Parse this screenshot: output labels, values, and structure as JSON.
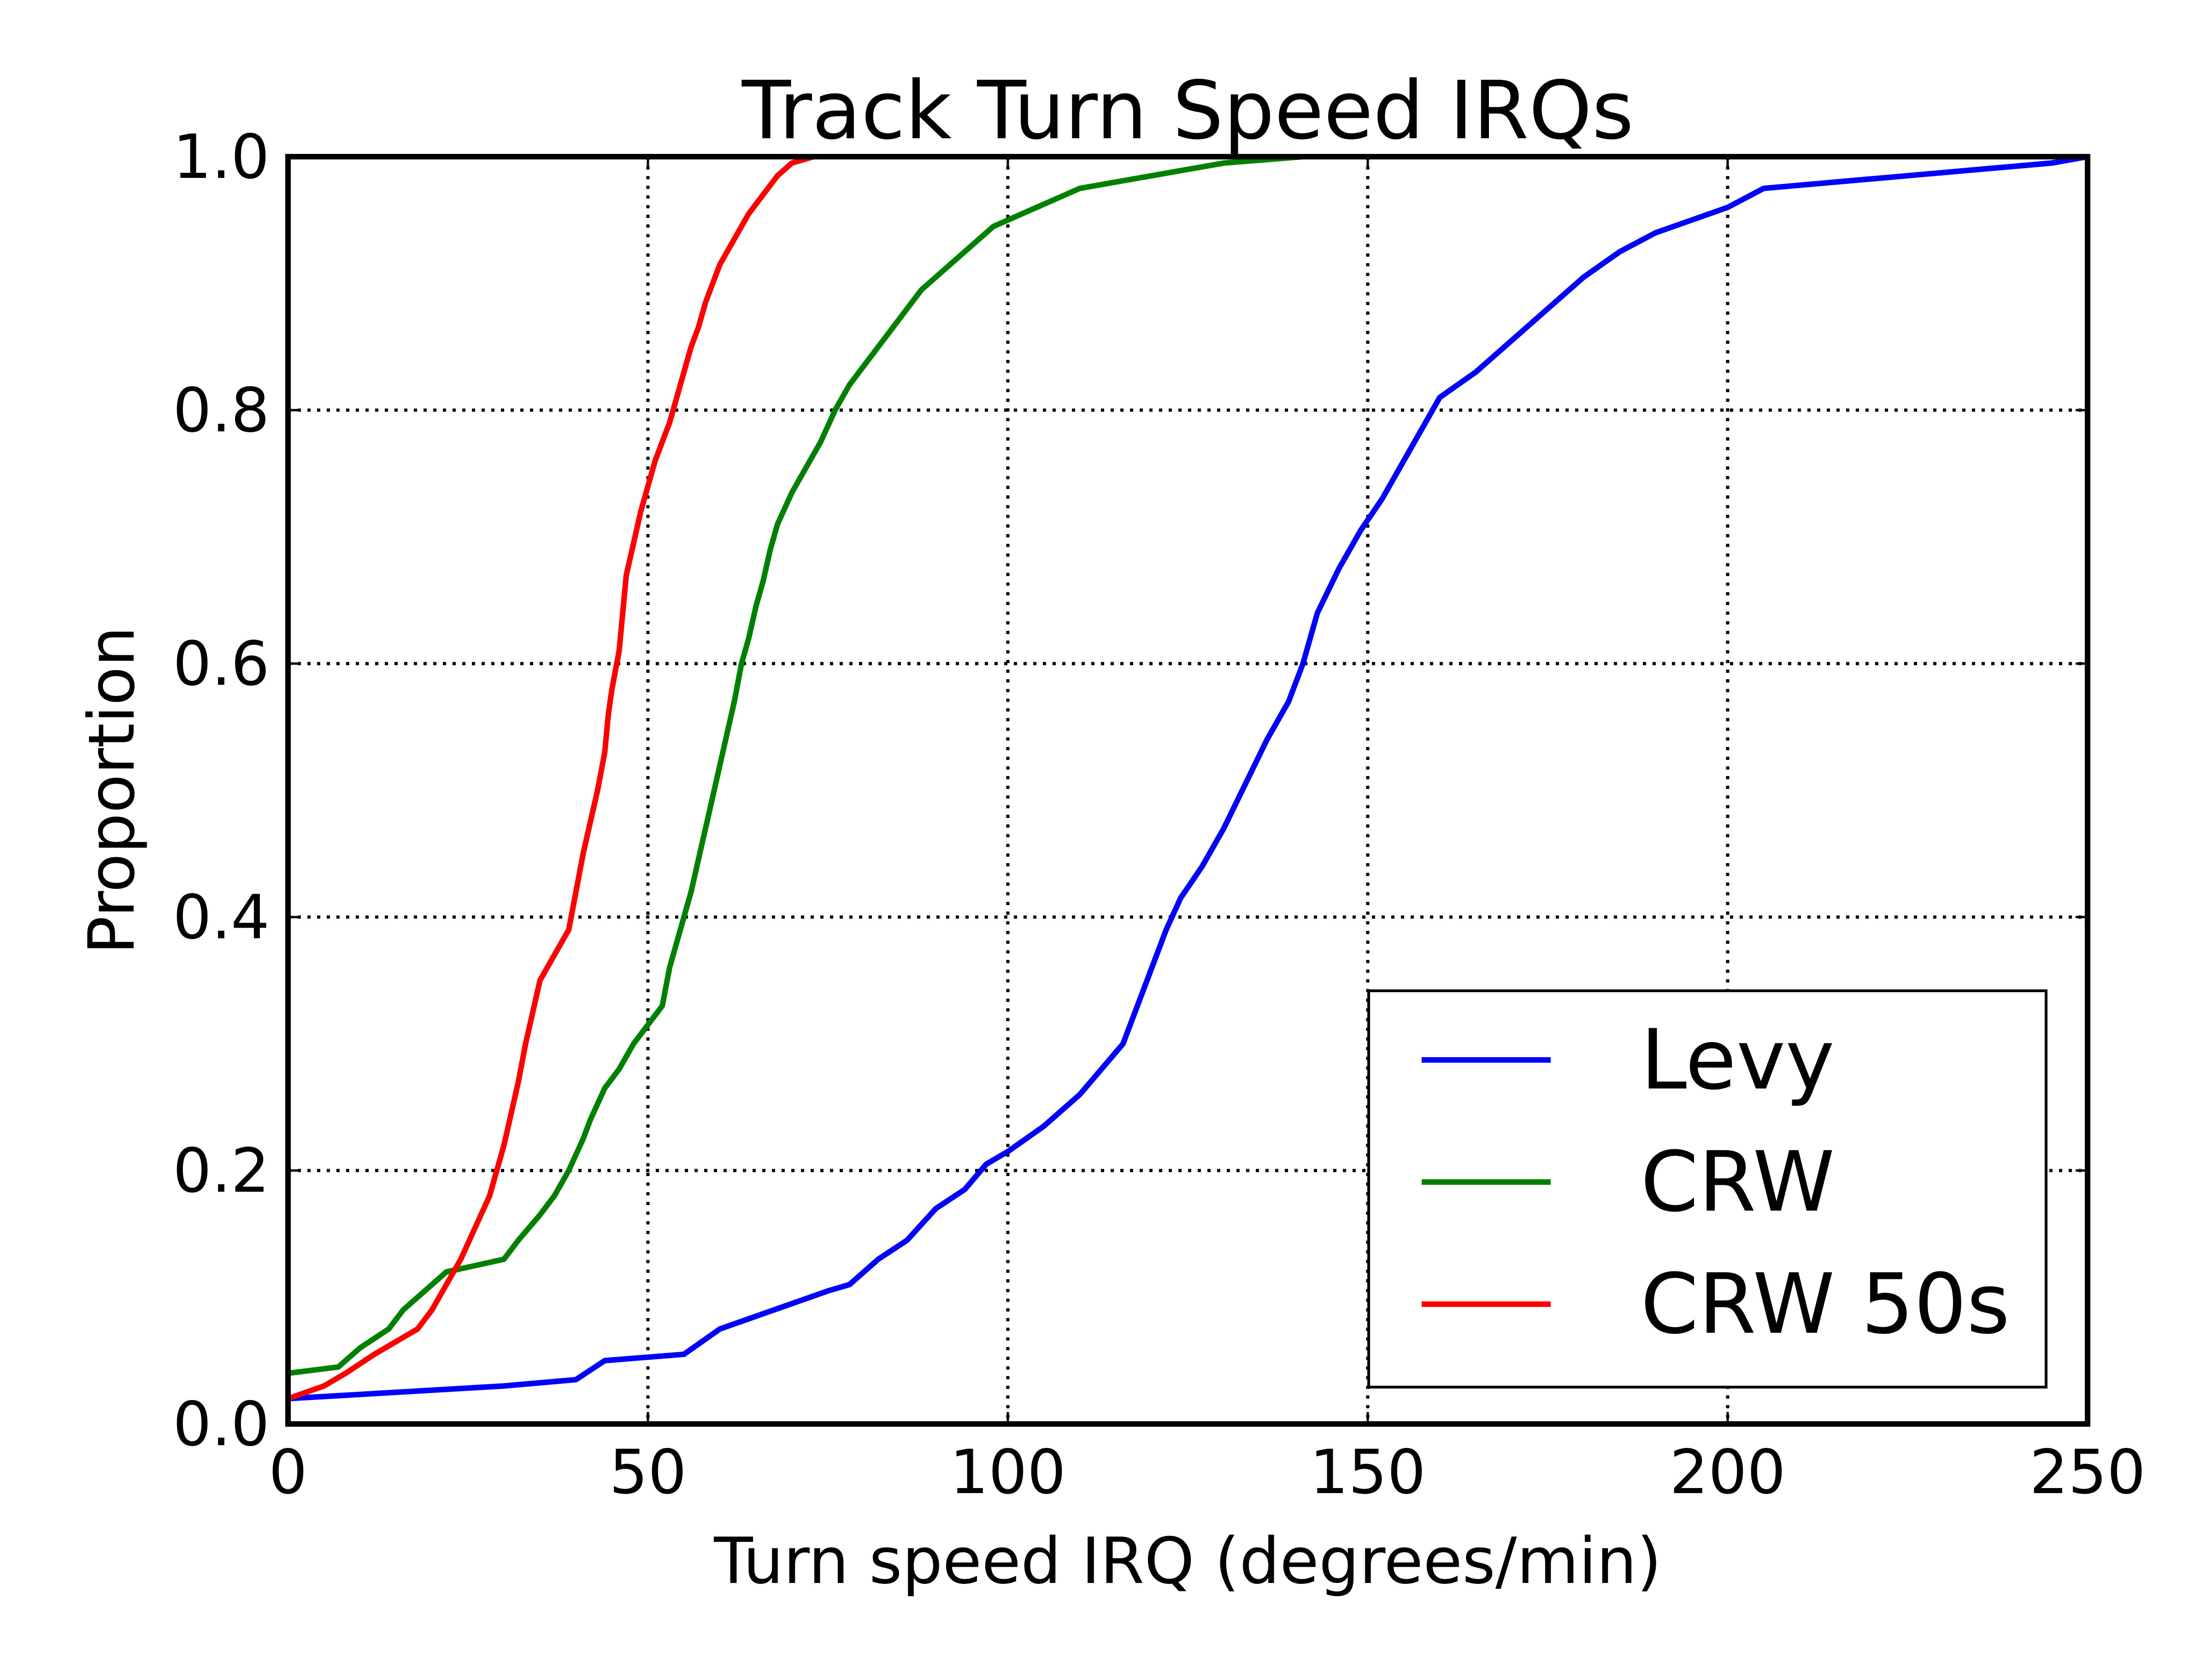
{
  "chart_data": {
    "type": "line",
    "title": "Track Turn Speed IRQs",
    "xlabel": "Turn speed IRQ (degrees/min)",
    "ylabel": "Proportion",
    "xlim": [
      0,
      250
    ],
    "ylim": [
      0.0,
      1.0
    ],
    "x_ticks": [
      "0",
      "50",
      "100",
      "150",
      "200",
      "250"
    ],
    "y_ticks": [
      "0.0",
      "0.2",
      "0.4",
      "0.6",
      "0.8",
      "1.0"
    ],
    "grid": true,
    "legend_position": "lower-right",
    "series": [
      {
        "name": "Levy",
        "color": "#0000ff",
        "points": [
          [
            0,
            0.02
          ],
          [
            15,
            0.025
          ],
          [
            30,
            0.03
          ],
          [
            40,
            0.035
          ],
          [
            44,
            0.05
          ],
          [
            55,
            0.055
          ],
          [
            60,
            0.075
          ],
          [
            65,
            0.085
          ],
          [
            70,
            0.095
          ],
          [
            75,
            0.105
          ],
          [
            78,
            0.11
          ],
          [
            82,
            0.13
          ],
          [
            86,
            0.145
          ],
          [
            90,
            0.17
          ],
          [
            94,
            0.185
          ],
          [
            97,
            0.205
          ],
          [
            100,
            0.215
          ],
          [
            105,
            0.235
          ],
          [
            110,
            0.26
          ],
          [
            113,
            0.28
          ],
          [
            116,
            0.3
          ],
          [
            118,
            0.33
          ],
          [
            120,
            0.36
          ],
          [
            122,
            0.39
          ],
          [
            124,
            0.415
          ],
          [
            127,
            0.44
          ],
          [
            130,
            0.47
          ],
          [
            133,
            0.505
          ],
          [
            136,
            0.54
          ],
          [
            139,
            0.57
          ],
          [
            141,
            0.6
          ],
          [
            143,
            0.64
          ],
          [
            146,
            0.675
          ],
          [
            149,
            0.705
          ],
          [
            152,
            0.73
          ],
          [
            155,
            0.76
          ],
          [
            158,
            0.79
          ],
          [
            160,
            0.81
          ],
          [
            165,
            0.83
          ],
          [
            170,
            0.855
          ],
          [
            175,
            0.88
          ],
          [
            180,
            0.905
          ],
          [
            185,
            0.925
          ],
          [
            190,
            0.94
          ],
          [
            195,
            0.95
          ],
          [
            200,
            0.96
          ],
          [
            205,
            0.975
          ],
          [
            215,
            0.98
          ],
          [
            225,
            0.985
          ],
          [
            235,
            0.99
          ],
          [
            245,
            0.995
          ],
          [
            250,
            1.0
          ]
        ]
      },
      {
        "name": "CRW",
        "color": "#008000",
        "points": [
          [
            0,
            0.04
          ],
          [
            7,
            0.045
          ],
          [
            10,
            0.06
          ],
          [
            14,
            0.075
          ],
          [
            16,
            0.09
          ],
          [
            19,
            0.105
          ],
          [
            22,
            0.12
          ],
          [
            26,
            0.125
          ],
          [
            30,
            0.13
          ],
          [
            32,
            0.145
          ],
          [
            35,
            0.165
          ],
          [
            37,
            0.18
          ],
          [
            39,
            0.2
          ],
          [
            41,
            0.225
          ],
          [
            42,
            0.24
          ],
          [
            44,
            0.265
          ],
          [
            46,
            0.28
          ],
          [
            48,
            0.3
          ],
          [
            50,
            0.315
          ],
          [
            52,
            0.33
          ],
          [
            53,
            0.36
          ],
          [
            54,
            0.38
          ],
          [
            55,
            0.4
          ],
          [
            56,
            0.42
          ],
          [
            57,
            0.445
          ],
          [
            58,
            0.47
          ],
          [
            59,
            0.495
          ],
          [
            60,
            0.52
          ],
          [
            61,
            0.545
          ],
          [
            62,
            0.57
          ],
          [
            63,
            0.6
          ],
          [
            64,
            0.62
          ],
          [
            65,
            0.645
          ],
          [
            66,
            0.665
          ],
          [
            67,
            0.69
          ],
          [
            68,
            0.71
          ],
          [
            70,
            0.735
          ],
          [
            72,
            0.755
          ],
          [
            74,
            0.775
          ],
          [
            76,
            0.8
          ],
          [
            78,
            0.82
          ],
          [
            80,
            0.835
          ],
          [
            82,
            0.85
          ],
          [
            84,
            0.865
          ],
          [
            86,
            0.88
          ],
          [
            88,
            0.895
          ],
          [
            90,
            0.905
          ],
          [
            92,
            0.915
          ],
          [
            95,
            0.93
          ],
          [
            98,
            0.945
          ],
          [
            102,
            0.955
          ],
          [
            106,
            0.965
          ],
          [
            110,
            0.975
          ],
          [
            115,
            0.98
          ],
          [
            120,
            0.985
          ],
          [
            125,
            0.99
          ],
          [
            130,
            0.995
          ],
          [
            141,
            1.0
          ]
        ]
      },
      {
        "name": "CRW 50s",
        "color": "#ff0000",
        "points": [
          [
            0,
            0.02
          ],
          [
            5,
            0.03
          ],
          [
            8,
            0.04
          ],
          [
            12,
            0.055
          ],
          [
            15,
            0.065
          ],
          [
            18,
            0.075
          ],
          [
            20,
            0.09
          ],
          [
            22,
            0.11
          ],
          [
            24,
            0.13
          ],
          [
            26,
            0.155
          ],
          [
            28,
            0.18
          ],
          [
            29,
            0.2
          ],
          [
            30,
            0.22
          ],
          [
            31,
            0.245
          ],
          [
            32,
            0.27
          ],
          [
            33,
            0.3
          ],
          [
            34,
            0.325
          ],
          [
            35,
            0.35
          ],
          [
            37,
            0.37
          ],
          [
            39,
            0.39
          ],
          [
            40,
            0.42
          ],
          [
            41,
            0.45
          ],
          [
            42,
            0.475
          ],
          [
            43,
            0.5
          ],
          [
            44,
            0.53
          ],
          [
            44.5,
            0.56
          ],
          [
            45,
            0.58
          ],
          [
            46,
            0.61
          ],
          [
            46.5,
            0.64
          ],
          [
            47,
            0.67
          ],
          [
            48,
            0.695
          ],
          [
            49,
            0.72
          ],
          [
            50,
            0.74
          ],
          [
            51,
            0.76
          ],
          [
            52,
            0.775
          ],
          [
            53,
            0.79
          ],
          [
            54,
            0.81
          ],
          [
            55,
            0.83
          ],
          [
            56,
            0.85
          ],
          [
            57,
            0.865
          ],
          [
            58,
            0.885
          ],
          [
            59,
            0.9
          ],
          [
            60,
            0.915
          ],
          [
            62,
            0.935
          ],
          [
            64,
            0.955
          ],
          [
            66,
            0.97
          ],
          [
            68,
            0.985
          ],
          [
            70,
            0.995
          ],
          [
            73,
            1.0
          ]
        ]
      }
    ]
  }
}
